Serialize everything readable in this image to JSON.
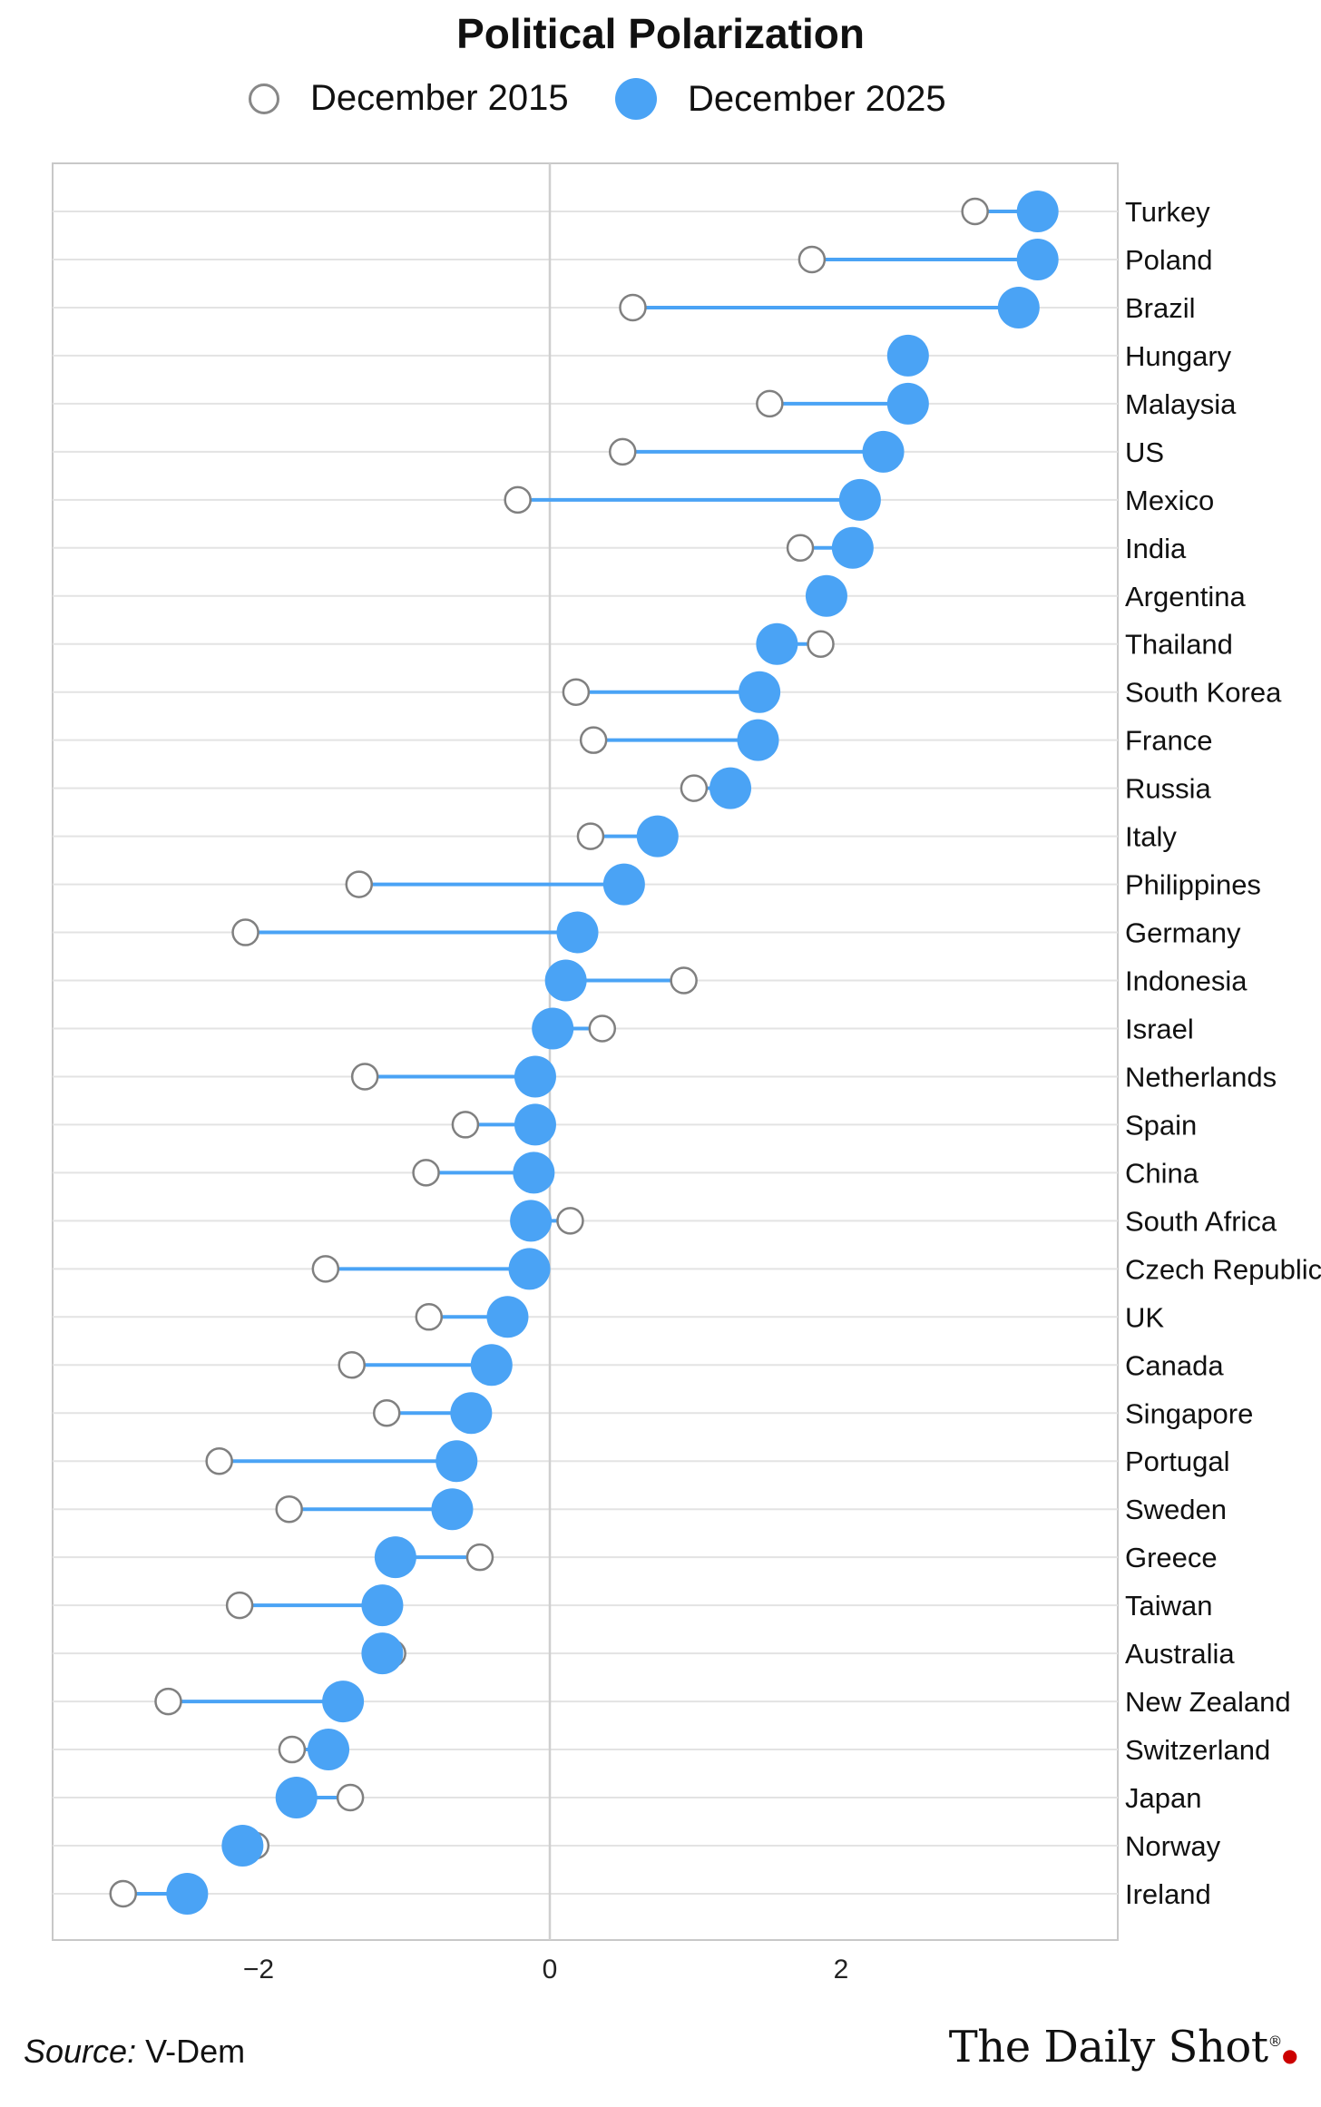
{
  "chart_data": {
    "type": "dumbbell",
    "title": "Political Polarization",
    "legend": [
      {
        "label": "December 2015",
        "style": "hollow",
        "color": "#ffffff",
        "stroke": "#777777"
      },
      {
        "label": "December 2025",
        "style": "filled",
        "color": "#4aa3f5"
      }
    ],
    "xlim": [
      -3.4,
      3.9
    ],
    "xticks": [
      -2,
      0,
      2
    ],
    "xtick_labels": [
      "−2",
      "0",
      "2"
    ],
    "legend_position": "top",
    "grid": "horizontal",
    "rows": [
      {
        "country": "Turkey",
        "y2015": 2.92,
        "y2025": 3.35
      },
      {
        "country": "Poland",
        "y2015": 1.8,
        "y2025": 3.35
      },
      {
        "country": "Brazil",
        "y2015": 0.57,
        "y2025": 3.22
      },
      {
        "country": "Hungary",
        "y2015": 2.46,
        "y2025": 2.46
      },
      {
        "country": "Malaysia",
        "y2015": 1.51,
        "y2025": 2.46
      },
      {
        "country": "US",
        "y2015": 0.5,
        "y2025": 2.29
      },
      {
        "country": "Mexico",
        "y2015": -0.22,
        "y2025": 2.13
      },
      {
        "country": "India",
        "y2015": 1.72,
        "y2025": 2.08
      },
      {
        "country": "Argentina",
        "y2015": 1.9,
        "y2025": 1.9
      },
      {
        "country": "Thailand",
        "y2015": 1.86,
        "y2025": 1.56
      },
      {
        "country": "South Korea",
        "y2015": 0.18,
        "y2025": 1.44
      },
      {
        "country": "France",
        "y2015": 0.3,
        "y2025": 1.43
      },
      {
        "country": "Russia",
        "y2015": 0.99,
        "y2025": 1.24
      },
      {
        "country": "Italy",
        "y2015": 0.28,
        "y2025": 0.74
      },
      {
        "country": "Philippines",
        "y2015": -1.31,
        "y2025": 0.51
      },
      {
        "country": "Germany",
        "y2015": -2.09,
        "y2025": 0.19
      },
      {
        "country": "Indonesia",
        "y2015": 0.92,
        "y2025": 0.11
      },
      {
        "country": "Israel",
        "y2015": 0.36,
        "y2025": 0.02
      },
      {
        "country": "Netherlands",
        "y2015": -1.27,
        "y2025": -0.1
      },
      {
        "country": "Spain",
        "y2015": -0.58,
        "y2025": -0.1
      },
      {
        "country": "China",
        "y2015": -0.85,
        "y2025": -0.11
      },
      {
        "country": "South Africa",
        "y2015": 0.14,
        "y2025": -0.13
      },
      {
        "country": "Czech Republic",
        "y2015": -1.54,
        "y2025": -0.14
      },
      {
        "country": "UK",
        "y2015": -0.83,
        "y2025": -0.29
      },
      {
        "country": "Canada",
        "y2015": -1.36,
        "y2025": -0.4
      },
      {
        "country": "Singapore",
        "y2015": -1.12,
        "y2025": -0.54
      },
      {
        "country": "Portugal",
        "y2015": -2.27,
        "y2025": -0.64
      },
      {
        "country": "Sweden",
        "y2015": -1.79,
        "y2025": -0.67
      },
      {
        "country": "Greece",
        "y2015": -0.48,
        "y2025": -1.06
      },
      {
        "country": "Taiwan",
        "y2015": -2.13,
        "y2025": -1.15
      },
      {
        "country": "Australia",
        "y2015": -1.08,
        "y2025": -1.15
      },
      {
        "country": "New Zealand",
        "y2015": -2.62,
        "y2025": -1.42
      },
      {
        "country": "Switzerland",
        "y2015": -1.77,
        "y2025": -1.52
      },
      {
        "country": "Japan",
        "y2015": -1.37,
        "y2025": -1.74
      },
      {
        "country": "Norway",
        "y2015": -2.02,
        "y2025": -2.11
      },
      {
        "country": "Ireland",
        "y2015": -2.93,
        "y2025": -2.49
      }
    ]
  },
  "footer": {
    "source_label": "Source:",
    "source_value": "V-Dem",
    "brand": "The Daily Shot",
    "brand_mark": "®"
  }
}
